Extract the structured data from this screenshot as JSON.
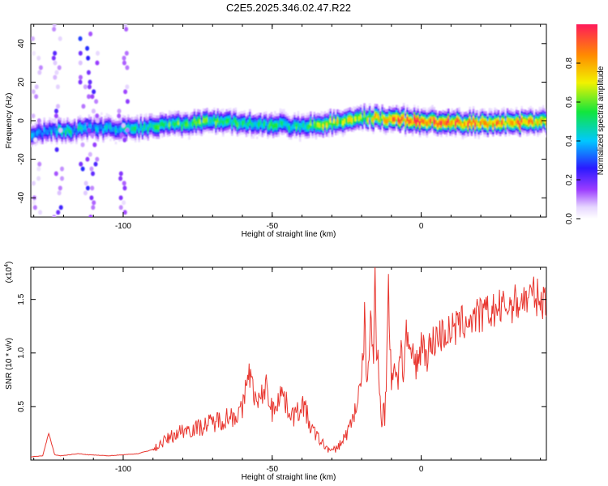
{
  "title": "C2E5.2025.346.02.47.R22",
  "colors": {
    "line": "#e8362f",
    "axis": "#000000"
  },
  "chart_data": [
    {
      "type": "heatmap",
      "title": "C2E5.2025.346.02.47.R22",
      "xlabel": "Height of straight line (km)",
      "ylabel": "Frequency (Hz)",
      "xlim": [
        -131,
        42
      ],
      "ylim": [
        -50,
        50
      ],
      "x_ticks": [
        -100,
        -50,
        0
      ],
      "y_ticks": [
        -40,
        -20,
        0,
        20,
        40
      ],
      "colorbar": {
        "label": "Normalized spectral amplitude",
        "range": [
          0,
          1
        ],
        "ticks": [
          "0.0",
          "0.2",
          "0.4",
          "0.6",
          "0.8"
        ],
        "colormap": "rainbow (white, purple, blue, cyan, green, yellow, red)"
      },
      "ridge": {
        "x": [
          -131,
          -120,
          -110,
          -100,
          -90,
          -80,
          -70,
          -60,
          -50,
          -40,
          -30,
          -20,
          -10,
          0,
          10,
          20,
          30,
          42
        ],
        "freq_hz": [
          -6,
          -5,
          -4,
          -4,
          -3,
          -2,
          0,
          -1,
          -2,
          -3,
          -1,
          2,
          1,
          0,
          -1,
          -1,
          -1,
          0
        ],
        "peak_amplitude": [
          0.35,
          0.45,
          0.4,
          0.45,
          0.5,
          0.55,
          0.55,
          0.5,
          0.5,
          0.5,
          0.7,
          0.6,
          0.85,
          0.95,
          0.9,
          0.85,
          0.85,
          0.8
        ]
      }
    },
    {
      "type": "line",
      "xlabel": "Height of straight line (km)",
      "ylabel": "SNR (10 * v/v)",
      "y_multiplier_label": "(x10",
      "y_multiplier_exp": "4",
      "xlim": [
        -131,
        42
      ],
      "ylim": [
        0,
        1.8
      ],
      "x_ticks": [
        -100,
        -50,
        0
      ],
      "y_ticks": [
        0.5,
        1.0,
        1.5
      ],
      "y_tick_labels": [
        "0.5",
        "1.0",
        "1.5"
      ],
      "series": [
        {
          "x": [
            -131,
            -127,
            -125,
            -123,
            -121,
            -115,
            -112,
            -105,
            -100,
            -95,
            -90,
            -85,
            -80,
            -75,
            -70,
            -65,
            -60,
            -58,
            -55,
            -52,
            -50,
            -47,
            -45,
            -42,
            -40,
            -37,
            -35,
            -32,
            -30,
            -28,
            -26,
            -24,
            -22,
            -20,
            -19,
            -18,
            -17,
            -16,
            -15.5,
            -15,
            -14.5,
            -14,
            -13,
            -12,
            -11,
            -10,
            -9,
            -8,
            -7,
            -6,
            -5,
            -4,
            -3,
            -2,
            -1,
            0,
            2,
            5,
            10,
            15,
            20,
            25,
            30,
            35,
            38,
            40,
            42
          ],
          "y": [
            0.03,
            0.04,
            0.25,
            0.05,
            0.04,
            0.06,
            0.05,
            0.04,
            0.05,
            0.06,
            0.1,
            0.2,
            0.28,
            0.3,
            0.35,
            0.4,
            0.45,
            0.85,
            0.5,
            0.7,
            0.45,
            0.65,
            0.5,
            0.4,
            0.55,
            0.3,
            0.22,
            0.12,
            0.08,
            0.12,
            0.2,
            0.3,
            0.5,
            0.7,
            1.3,
            0.6,
            1.45,
            0.8,
            1.85,
            0.9,
            1.2,
            0.6,
            0.4,
            0.5,
            1.58,
            0.75,
            0.95,
            0.7,
            1.1,
            0.8,
            1.2,
            0.9,
            1.05,
            0.85,
            0.95,
            1.1,
            1.0,
            1.15,
            1.2,
            1.3,
            1.35,
            1.4,
            1.45,
            1.5,
            1.55,
            1.48,
            1.5
          ]
        }
      ]
    }
  ]
}
